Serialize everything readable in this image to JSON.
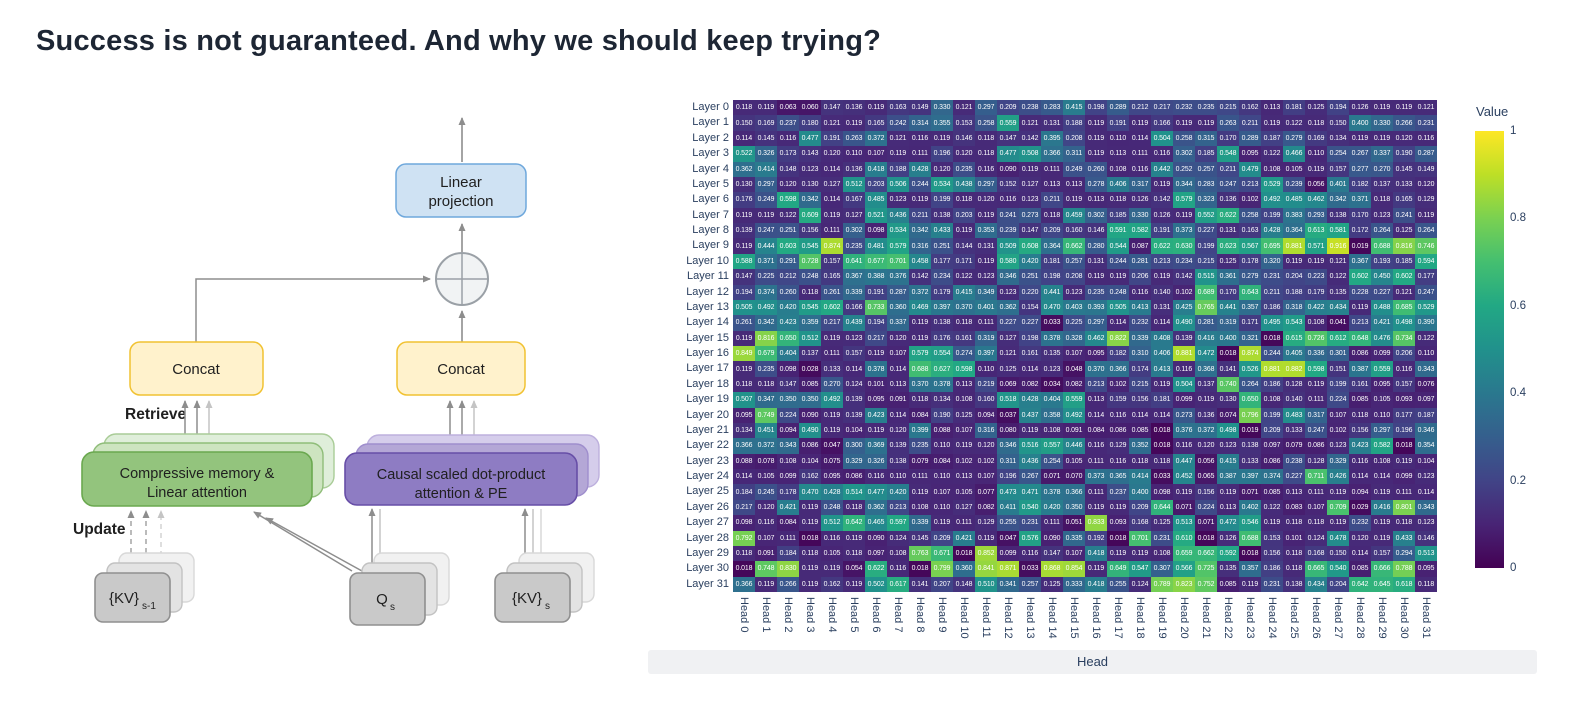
{
  "title": "Success is not guaranteed. And why we should keep trying?",
  "diagram": {
    "retrieve_label": "Retrieve",
    "update_label": "Update",
    "linear_projection": {
      "line1": "Linear",
      "line2": "projection"
    },
    "concat_left": "Concat",
    "concat_right": "Concat",
    "memory_block": {
      "line1": "Compressive memory &",
      "line2": "Linear attention"
    },
    "attention_block": {
      "line1": "Causal scaled dot-product",
      "line2": "attention & PE"
    },
    "kv_prev": {
      "base": "{KV}",
      "sub": "s-1"
    },
    "query": {
      "base": "Q",
      "sub": "s"
    },
    "kv_cur": {
      "base": "{KV}",
      "sub": "s"
    },
    "colors": {
      "memory_fill": "#93c47d",
      "memory_border": "#6aa84f",
      "attention_fill": "#8e7cc3",
      "attention_border": "#674ea7",
      "concat_fill": "#fff2cc",
      "concat_border": "#f1c232",
      "projection_fill": "#cfe2f3",
      "projection_border": "#6fa8dc",
      "token_fill": "#c9c9c9",
      "token_border": "#8f8f8f",
      "label_blue": "#1b1bff"
    }
  },
  "chart_data": {
    "type": "heatmap",
    "xlabel": "Head",
    "ylabel": "",
    "colorbar_title": "Value",
    "colorbar_ticks": [
      "1",
      "0.8",
      "0.6",
      "0.4",
      "0.2",
      "0"
    ],
    "zmin": 0,
    "zmax": 1,
    "colorscale": "viridis",
    "colorscale_stops": [
      "#440154",
      "#482475",
      "#414487",
      "#355f8d",
      "#2a788e",
      "#21918c",
      "#22a884",
      "#44bf70",
      "#7ad151",
      "#bddf26",
      "#fde725"
    ],
    "label_color": "#2a3f5f",
    "rows": [
      "Layer 0",
      "Layer 1",
      "Layer 2",
      "Layer 3",
      "Layer 4",
      "Layer 5",
      "Layer 6",
      "Layer 7",
      "Layer 8",
      "Layer 9",
      "Layer 10",
      "Layer 11",
      "Layer 12",
      "Layer 13",
      "Layer 14",
      "Layer 15",
      "Layer 16",
      "Layer 17",
      "Layer 18",
      "Layer 19",
      "Layer 20",
      "Layer 21",
      "Layer 22",
      "Layer 23",
      "Layer 24",
      "Layer 25",
      "Layer 26",
      "Layer 27",
      "Layer 28",
      "Layer 29",
      "Layer 30",
      "Layer 31"
    ],
    "columns": [
      "Head 0",
      "Head 1",
      "Head 2",
      "Head 3",
      "Head 4",
      "Head 5",
      "Head 6",
      "Head 7",
      "Head 8",
      "Head 9",
      "Head 10",
      "Head 11",
      "Head 12",
      "Head 13",
      "Head 14",
      "Head 15",
      "Head 16",
      "Head 17",
      "Head 18",
      "Head 19",
      "Head 20",
      "Head 21",
      "Head 22",
      "Head 23",
      "Head 24",
      "Head 25",
      "Head 26",
      "Head 27",
      "Head 28",
      "Head 29",
      "Head 30",
      "Head 31"
    ],
    "values": [
      [
        0.118,
        0.119,
        0.063,
        0.06,
        0.147,
        0.136,
        0.119,
        0.163,
        0.149,
        0.33,
        0.121,
        0.297,
        0.209,
        0.238,
        0.283,
        0.415,
        0.198,
        0.289,
        0.212,
        0.217,
        0.232,
        0.235,
        0.215,
        0.162,
        0.113,
        0.181,
        0.125,
        0.194,
        0.126,
        0.119,
        0.119,
        0.121
      ],
      [
        0.15,
        0.169,
        0.237,
        0.18,
        0.121,
        0.119,
        0.165,
        0.242,
        0.314,
        0.355,
        0.153,
        0.258,
        0.559,
        0.121,
        0.131,
        0.188,
        0.119,
        0.191,
        0.119,
        0.166,
        0.119,
        0.119,
        0.263,
        0.211,
        0.119,
        0.122,
        0.118,
        0.15,
        0.4,
        0.33,
        0.266,
        0.231
      ],
      [
        0.114,
        0.145,
        0.116,
        0.477,
        0.191,
        0.263,
        0.372,
        0.121,
        0.116,
        0.119,
        0.146,
        0.118,
        0.147,
        0.142,
        0.395,
        0.208,
        0.119,
        0.11,
        0.114,
        0.504,
        0.258,
        0.315,
        0.17,
        0.289,
        0.187,
        0.279,
        0.169,
        0.134,
        0.119,
        0.119,
        0.12,
        0.116
      ],
      [
        0.522,
        0.326,
        0.173,
        0.143,
        0.12,
        0.11,
        0.107,
        0.119,
        0.111,
        0.196,
        0.12,
        0.118,
        0.477,
        0.508,
        0.366,
        0.311,
        0.119,
        0.113,
        0.111,
        0.116,
        0.302,
        0.185,
        0.548,
        0.095,
        0.122,
        0.466,
        0.11,
        0.254,
        0.267,
        0.337,
        0.19,
        0.287
      ],
      [
        0.362,
        0.414,
        0.148,
        0.123,
        0.114,
        0.136,
        0.418,
        0.188,
        0.428,
        0.12,
        0.235,
        0.116,
        0.09,
        0.119,
        0.111,
        0.249,
        0.26,
        0.108,
        0.116,
        0.442,
        0.252,
        0.257,
        0.211,
        0.479,
        0.108,
        0.105,
        0.119,
        0.157,
        0.277,
        0.27,
        0.145,
        0.149
      ],
      [
        0.13,
        0.297,
        0.12,
        0.13,
        0.127,
        0.512,
        0.203,
        0.506,
        0.244,
        0.534,
        0.438,
        0.297,
        0.152,
        0.127,
        0.113,
        0.113,
        0.278,
        0.406,
        0.317,
        0.119,
        0.344,
        0.283,
        0.247,
        0.213,
        0.529,
        0.239,
        0.056,
        0.401,
        0.182,
        0.137,
        0.133,
        0.12
      ],
      [
        0.176,
        0.249,
        0.598,
        0.342,
        0.114,
        0.167,
        0.485,
        0.123,
        0.119,
        0.199,
        0.118,
        0.12,
        0.116,
        0.123,
        0.211,
        0.119,
        0.113,
        0.118,
        0.126,
        0.142,
        0.579,
        0.323,
        0.136,
        0.102,
        0.492,
        0.485,
        0.462,
        0.342,
        0.371,
        0.118,
        0.165,
        0.129
      ],
      [
        0.119,
        0.119,
        0.122,
        0.609,
        0.119,
        0.127,
        0.521,
        0.436,
        0.211,
        0.138,
        0.203,
        0.119,
        0.241,
        0.273,
        0.118,
        0.459,
        0.302,
        0.185,
        0.33,
        0.126,
        0.119,
        0.552,
        0.622,
        0.258,
        0.199,
        0.383,
        0.293,
        0.138,
        0.17,
        0.123,
        0.241,
        0.119
      ],
      [
        0.139,
        0.247,
        0.251,
        0.156,
        0.111,
        0.302,
        0.098,
        0.534,
        0.342,
        0.433,
        0.119,
        0.353,
        0.239,
        0.147,
        0.209,
        0.16,
        0.146,
        0.591,
        0.582,
        0.191,
        0.373,
        0.227,
        0.131,
        0.163,
        0.428,
        0.364,
        0.613,
        0.581,
        0.172,
        0.264,
        0.125,
        0.264
      ],
      [
        0.119,
        0.444,
        0.603,
        0.545,
        0.874,
        0.235,
        0.481,
        0.579,
        0.316,
        0.251,
        0.144,
        0.131,
        0.509,
        0.608,
        0.364,
        0.662,
        0.28,
        0.544,
        0.087,
        0.622,
        0.63,
        0.199,
        0.623,
        0.567,
        0.695,
        0.881,
        0.571,
        0.916,
        0.019,
        0.688,
        0.816,
        0.746
      ],
      [
        0.588,
        0.371,
        0.291,
        0.728,
        0.157,
        0.641,
        0.677,
        0.701,
        0.458,
        0.177,
        0.171,
        0.119,
        0.58,
        0.42,
        0.181,
        0.257,
        0.131,
        0.244,
        0.281,
        0.213,
        0.234,
        0.215,
        0.125,
        0.178,
        0.32,
        0.119,
        0.119,
        0.121,
        0.367,
        0.193,
        0.185,
        0.594
      ],
      [
        0.147,
        0.225,
        0.212,
        0.248,
        0.165,
        0.367,
        0.388,
        0.376,
        0.142,
        0.234,
        0.122,
        0.123,
        0.346,
        0.251,
        0.198,
        0.208,
        0.119,
        0.119,
        0.206,
        0.119,
        0.142,
        0.515,
        0.361,
        0.279,
        0.231,
        0.204,
        0.223,
        0.122,
        0.602,
        0.45,
        0.602,
        0.177
      ],
      [
        0.194,
        0.374,
        0.26,
        0.118,
        0.261,
        0.339,
        0.191,
        0.287,
        0.372,
        0.179,
        0.415,
        0.349,
        0.123,
        0.22,
        0.441,
        0.123,
        0.235,
        0.248,
        0.116,
        0.14,
        0.102,
        0.689,
        0.17,
        0.643,
        0.211,
        0.188,
        0.179,
        0.135,
        0.228,
        0.227,
        0.121,
        0.247
      ],
      [
        0.505,
        0.492,
        0.42,
        0.545,
        0.602,
        0.166,
        0.733,
        0.36,
        0.469,
        0.397,
        0.37,
        0.401,
        0.362,
        0.154,
        0.47,
        0.403,
        0.393,
        0.505,
        0.413,
        0.131,
        0.425,
        0.765,
        0.441,
        0.357,
        0.186,
        0.318,
        0.422,
        0.434,
        0.119,
        0.488,
        0.685,
        0.529
      ],
      [
        0.261,
        0.342,
        0.423,
        0.359,
        0.217,
        0.439,
        0.194,
        0.337,
        0.119,
        0.138,
        0.118,
        0.111,
        0.227,
        0.227,
        0.033,
        0.225,
        0.297,
        0.114,
        0.232,
        0.114,
        0.49,
        0.281,
        0.319,
        0.171,
        0.495,
        0.543,
        0.108,
        0.041,
        0.213,
        0.421,
        0.498,
        0.39
      ],
      [
        0.119,
        0.816,
        0.65,
        0.512,
        0.119,
        0.123,
        0.217,
        0.12,
        0.119,
        0.176,
        0.161,
        0.319,
        0.127,
        0.198,
        0.378,
        0.328,
        0.462,
        0.822,
        0.339,
        0.408,
        0.139,
        0.416,
        0.4,
        0.321,
        0.018,
        0.615,
        0.726,
        0.612,
        0.648,
        0.476,
        0.734,
        0.122
      ],
      [
        0.849,
        0.679,
        0.404,
        0.137,
        0.111,
        0.157,
        0.119,
        0.107,
        0.579,
        0.554,
        0.274,
        0.397,
        0.121,
        0.161,
        0.135,
        0.107,
        0.095,
        0.182,
        0.31,
        0.406,
        0.881,
        0.472,
        0.018,
        0.874,
        0.244,
        0.405,
        0.336,
        0.301,
        0.086,
        0.099,
        0.206,
        0.11
      ],
      [
        0.119,
        0.235,
        0.098,
        0.028,
        0.133,
        0.114,
        0.378,
        0.114,
        0.688,
        0.627,
        0.598,
        0.11,
        0.125,
        0.114,
        0.123,
        0.048,
        0.37,
        0.366,
        0.174,
        0.413,
        0.116,
        0.368,
        0.141,
        0.526,
        0.881,
        0.882,
        0.598,
        0.151,
        0.387,
        0.559,
        0.116,
        0.343
      ],
      [
        0.118,
        0.118,
        0.147,
        0.085,
        0.27,
        0.124,
        0.101,
        0.113,
        0.37,
        0.378,
        0.113,
        0.219,
        0.069,
        0.082,
        0.034,
        0.082,
        0.213,
        0.102,
        0.215,
        0.119,
        0.504,
        0.137,
        0.74,
        0.264,
        0.186,
        0.128,
        0.119,
        0.199,
        0.161,
        0.095,
        0.157,
        0.076
      ],
      [
        0.507,
        0.347,
        0.35,
        0.35,
        0.492,
        0.139,
        0.095,
        0.091,
        0.118,
        0.134,
        0.108,
        0.16,
        0.518,
        0.428,
        0.404,
        0.559,
        0.113,
        0.159,
        0.156,
        0.181,
        0.099,
        0.119,
        0.13,
        0.65,
        0.108,
        0.14,
        0.111,
        0.224,
        0.085,
        0.105,
        0.093,
        0.097
      ],
      [
        0.095,
        0.749,
        0.224,
        0.09,
        0.119,
        0.139,
        0.423,
        0.114,
        0.084,
        0.19,
        0.125,
        0.094,
        0.037,
        0.437,
        0.358,
        0.492,
        0.114,
        0.116,
        0.114,
        0.114,
        0.273,
        0.136,
        0.074,
        0.796,
        0.199,
        0.483,
        0.317,
        0.107,
        0.118,
        0.11,
        0.177,
        0.187
      ],
      [
        0.134,
        0.451,
        0.094,
        0.49,
        0.119,
        0.104,
        0.119,
        0.12,
        0.399,
        0.088,
        0.107,
        0.316,
        0.08,
        0.119,
        0.108,
        0.091,
        0.084,
        0.086,
        0.085,
        0.018,
        0.376,
        0.372,
        0.498,
        0.019,
        0.209,
        0.133,
        0.247,
        0.102,
        0.156,
        0.297,
        0.196,
        0.346
      ],
      [
        0.366,
        0.372,
        0.343,
        0.086,
        0.047,
        0.3,
        0.369,
        0.139,
        0.235,
        0.11,
        0.119,
        0.12,
        0.346,
        0.516,
        0.557,
        0.446,
        0.116,
        0.129,
        0.352,
        0.018,
        0.116,
        0.12,
        0.123,
        0.138,
        0.097,
        0.079,
        0.086,
        0.123,
        0.423,
        0.582,
        0.018,
        0.354
      ],
      [
        0.088,
        0.078,
        0.108,
        0.104,
        0.075,
        0.329,
        0.326,
        0.138,
        0.079,
        0.084,
        0.102,
        0.102,
        0.311,
        0.436,
        0.254,
        0.105,
        0.111,
        0.116,
        0.118,
        0.118,
        0.447,
        0.056,
        0.415,
        0.133,
        0.086,
        0.238,
        0.128,
        0.329,
        0.116,
        0.108,
        0.119,
        0.104
      ],
      [
        0.114,
        0.105,
        0.099,
        0.162,
        0.095,
        0.086,
        0.116,
        0.11,
        0.111,
        0.11,
        0.113,
        0.107,
        0.196,
        0.267,
        0.071,
        0.07,
        0.373,
        0.365,
        0.414,
        0.033,
        0.452,
        0.065,
        0.387,
        0.397,
        0.374,
        0.227,
        0.711,
        0.426,
        0.114,
        0.114,
        0.099,
        0.123
      ],
      [
        0.184,
        0.245,
        0.178,
        0.47,
        0.428,
        0.514,
        0.477,
        0.42,
        0.119,
        0.107,
        0.105,
        0.077,
        0.473,
        0.471,
        0.378,
        0.366,
        0.111,
        0.237,
        0.4,
        0.098,
        0.119,
        0.156,
        0.119,
        0.071,
        0.085,
        0.113,
        0.111,
        0.119,
        0.094,
        0.119,
        0.111,
        0.114
      ],
      [
        0.217,
        0.12,
        0.421,
        0.119,
        0.248,
        0.118,
        0.362,
        0.213,
        0.108,
        0.11,
        0.127,
        0.082,
        0.411,
        0.54,
        0.42,
        0.35,
        0.119,
        0.119,
        0.209,
        0.644,
        0.071,
        0.224,
        0.113,
        0.402,
        0.122,
        0.083,
        0.107,
        0.709,
        0.029,
        0.416,
        0.801,
        0.343
      ],
      [
        0.098,
        0.116,
        0.084,
        0.119,
        0.512,
        0.642,
        0.465,
        0.597,
        0.339,
        0.119,
        0.111,
        0.129,
        0.255,
        0.231,
        0.111,
        0.051,
        0.833,
        0.093,
        0.168,
        0.125,
        0.513,
        0.071,
        0.472,
        0.546,
        0.119,
        0.118,
        0.118,
        0.119,
        0.232,
        0.119,
        0.118,
        0.123
      ],
      [
        0.792,
        0.107,
        0.111,
        0.018,
        0.116,
        0.119,
        0.09,
        0.124,
        0.145,
        0.209,
        0.421,
        0.119,
        0.047,
        0.576,
        0.09,
        0.335,
        0.192,
        0.018,
        0.701,
        0.231,
        0.61,
        0.018,
        0.126,
        0.688,
        0.153,
        0.101,
        0.124,
        0.478,
        0.12,
        0.119,
        0.433,
        0.146
      ],
      [
        0.118,
        0.091,
        0.184,
        0.118,
        0.105,
        0.118,
        0.097,
        0.108,
        0.763,
        0.671,
        0.018,
        0.852,
        0.099,
        0.116,
        0.147,
        0.107,
        0.418,
        0.119,
        0.119,
        0.108,
        0.659,
        0.662,
        0.592,
        0.018,
        0.156,
        0.118,
        0.168,
        0.15,
        0.114,
        0.157,
        0.294,
        0.513
      ],
      [
        0.018,
        0.748,
        0.83,
        0.119,
        0.119,
        0.054,
        0.622,
        0.116,
        0.018,
        0.799,
        0.36,
        0.841,
        0.871,
        0.033,
        0.868,
        0.854,
        0.119,
        0.649,
        0.547,
        0.307,
        0.566,
        0.725,
        0.135,
        0.357,
        0.186,
        0.118,
        0.665,
        0.54,
        0.085,
        0.666,
        0.788,
        0.095
      ],
      [
        0.366,
        0.119,
        0.266,
        0.119,
        0.162,
        0.119,
        0.502,
        0.617,
        0.141,
        0.207,
        0.148,
        0.51,
        0.341,
        0.257,
        0.125,
        0.333,
        0.418,
        0.255,
        0.124,
        0.789,
        0.823,
        0.752,
        0.085,
        0.119,
        0.231,
        0.138,
        0.434,
        0.204,
        0.642,
        0.645,
        0.618,
        0.118
      ]
    ]
  }
}
